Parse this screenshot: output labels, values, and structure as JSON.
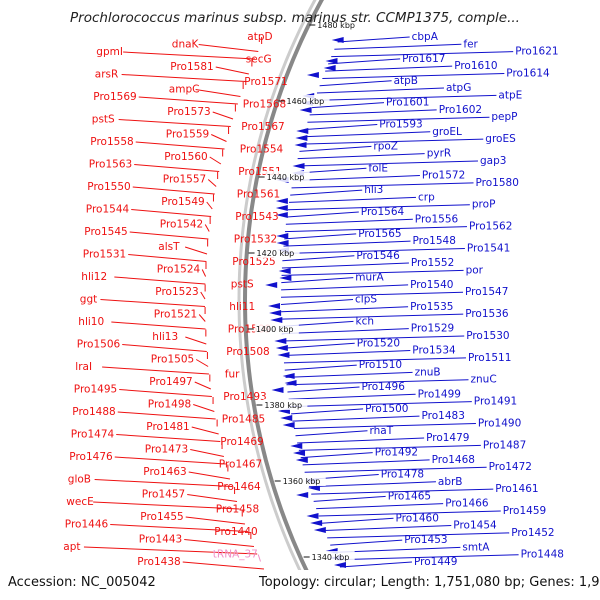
{
  "title": "Prochlorococcus marinus subsp. marinus str. CCMP1375, comple...",
  "accession_line": "Accession: NC_005042",
  "summary_line": "Topology: circular; Length: 1,751,080 bp; Genes: 1,929",
  "colors": {
    "forward": "#ee1111",
    "reverse": "#1111cc",
    "rna": "#f090c8",
    "backbone": "#888888"
  },
  "scale_labels": [
    "1480 kbp",
    "1460 kbp",
    "1440 kbp",
    "1420 kbp",
    "1400 kbp",
    "1380 kbp",
    "1360 kbp",
    "1340 kbp"
  ],
  "left_labels": [
    "atpD",
    "dnaK",
    "gpmI",
    "secG",
    "Pro1581",
    "arsR",
    "Pro1571",
    "ampC",
    "Pro1569",
    "Pro1568",
    "Pro1573",
    "pstS",
    "Pro1567",
    "Pro1559",
    "Pro1558",
    "Pro1554",
    "Pro1560",
    "Pro1563",
    "Pro1551",
    "Pro1557",
    "Pro1550",
    "Pro1561",
    "Pro1549",
    "Pro1544",
    "Pro1543",
    "Pro1542",
    "Pro1545",
    "Pro1532",
    "alsT",
    "Pro1531",
    "Pro1525",
    "Pro1524",
    "hli12",
    "pstS",
    "Pro1523",
    "ggt",
    "hli11",
    "Pro1521",
    "hli10",
    "Pro1509",
    "hli13",
    "Pro1506",
    "Pro1508",
    "Pro1505",
    "lrаI",
    "fur",
    "Pro1497",
    "Pro1495",
    "Pro1493",
    "Pro1498",
    "Pro1488",
    "Pro1485",
    "Pro1481",
    "Pro1474",
    "Pro1469",
    "Pro1473",
    "Pro1476",
    "Pro1467",
    "Pro1463",
    "gloB",
    "Pro1464",
    "Pro1457",
    "wecE",
    "Pro1458",
    "Pro1455",
    "Pro1446",
    "Pro1440",
    "Pro1443",
    "apt",
    "tRNA_37",
    "Pro1438"
  ],
  "right_labels": [
    "cbpA",
    "fer",
    "Pro1621",
    "Pro1617",
    "Pro1610",
    "Pro1614",
    "atpB",
    "atpG",
    "atpE",
    "Pro1601",
    "Pro1602",
    "pepP",
    "Pro1593",
    "groEL",
    "groES",
    "rpoZ",
    "pyrR",
    "gap3",
    "folE",
    "Pro1572",
    "Pro1580",
    "hli3",
    "crp",
    "proP",
    "Pro1564",
    "Pro1556",
    "Pro1562",
    "Pro1565",
    "Pro1548",
    "Pro1541",
    "Pro1546",
    "Pro1552",
    "por",
    "murA",
    "Pro1540",
    "Pro1547",
    "clpS",
    "Pro1535",
    "Pro1536",
    "kch",
    "Pro1529",
    "Pro1530",
    "Pro1520",
    "Pro1534",
    "Pro1511",
    "Pro1510",
    "znuB",
    "znuC",
    "Pro1496",
    "Pro1499",
    "Pro1491",
    "Pro1500",
    "Pro1483",
    "Pro1490",
    "rhaT",
    "Pro1479",
    "Pro1487",
    "Pro1492",
    "Pro1468",
    "Pro1472",
    "Pro1478",
    "abrB",
    "Pro1461",
    "Pro1465",
    "Pro1466",
    "Pro1459",
    "Pro1460",
    "Pro1454",
    "Pro1452",
    "Pro1453",
    "smtA",
    "Pro1448",
    "Pro1449"
  ]
}
